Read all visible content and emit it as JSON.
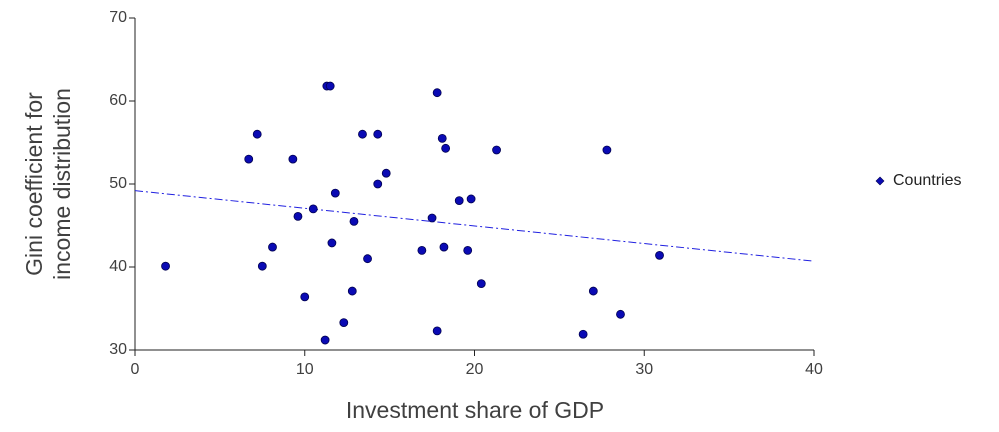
{
  "chart_data": {
    "type": "scatter",
    "xlabel": "Investment share of GDP",
    "ylabel": [
      "Gini coefficient for",
      "income distribution"
    ],
    "xlim": [
      0,
      40
    ],
    "xticks": [
      0,
      10,
      20,
      30,
      40
    ],
    "ylim": [
      30,
      70
    ],
    "yticks": [
      30,
      40,
      50,
      60,
      70
    ],
    "series": [
      {
        "name": "Countries",
        "color": "#0a0ab4",
        "x": [
          1.8,
          6.7,
          7.2,
          7.5,
          8.1,
          9.3,
          9.6,
          10.0,
          10.5,
          11.3,
          11.5,
          11.6,
          11.8,
          11.2,
          12.3,
          12.8,
          12.9,
          13.4,
          13.7,
          14.3,
          14.3,
          14.8,
          16.9,
          17.5,
          17.8,
          17.8,
          18.1,
          18.2,
          18.3,
          19.1,
          19.8,
          19.6,
          20.4,
          21.3,
          26.4,
          27.0,
          27.8,
          28.6,
          30.9
        ],
        "values": [
          40.1,
          53.0,
          56.0,
          40.1,
          42.4,
          53.0,
          46.1,
          36.4,
          47.0,
          61.8,
          61.8,
          42.9,
          48.9,
          31.2,
          33.3,
          37.1,
          45.5,
          56.0,
          41.0,
          56.0,
          50.0,
          51.3,
          42.0,
          45.9,
          61.0,
          32.3,
          55.5,
          42.4,
          54.3,
          48.0,
          48.2,
          42.0,
          38.0,
          54.1,
          31.9,
          37.1,
          54.1,
          34.3,
          41.4
        ]
      }
    ],
    "trendline": {
      "color": "#2020e0",
      "x": [
        0,
        40
      ],
      "values": [
        49.2,
        40.7
      ]
    },
    "legend": "right"
  }
}
